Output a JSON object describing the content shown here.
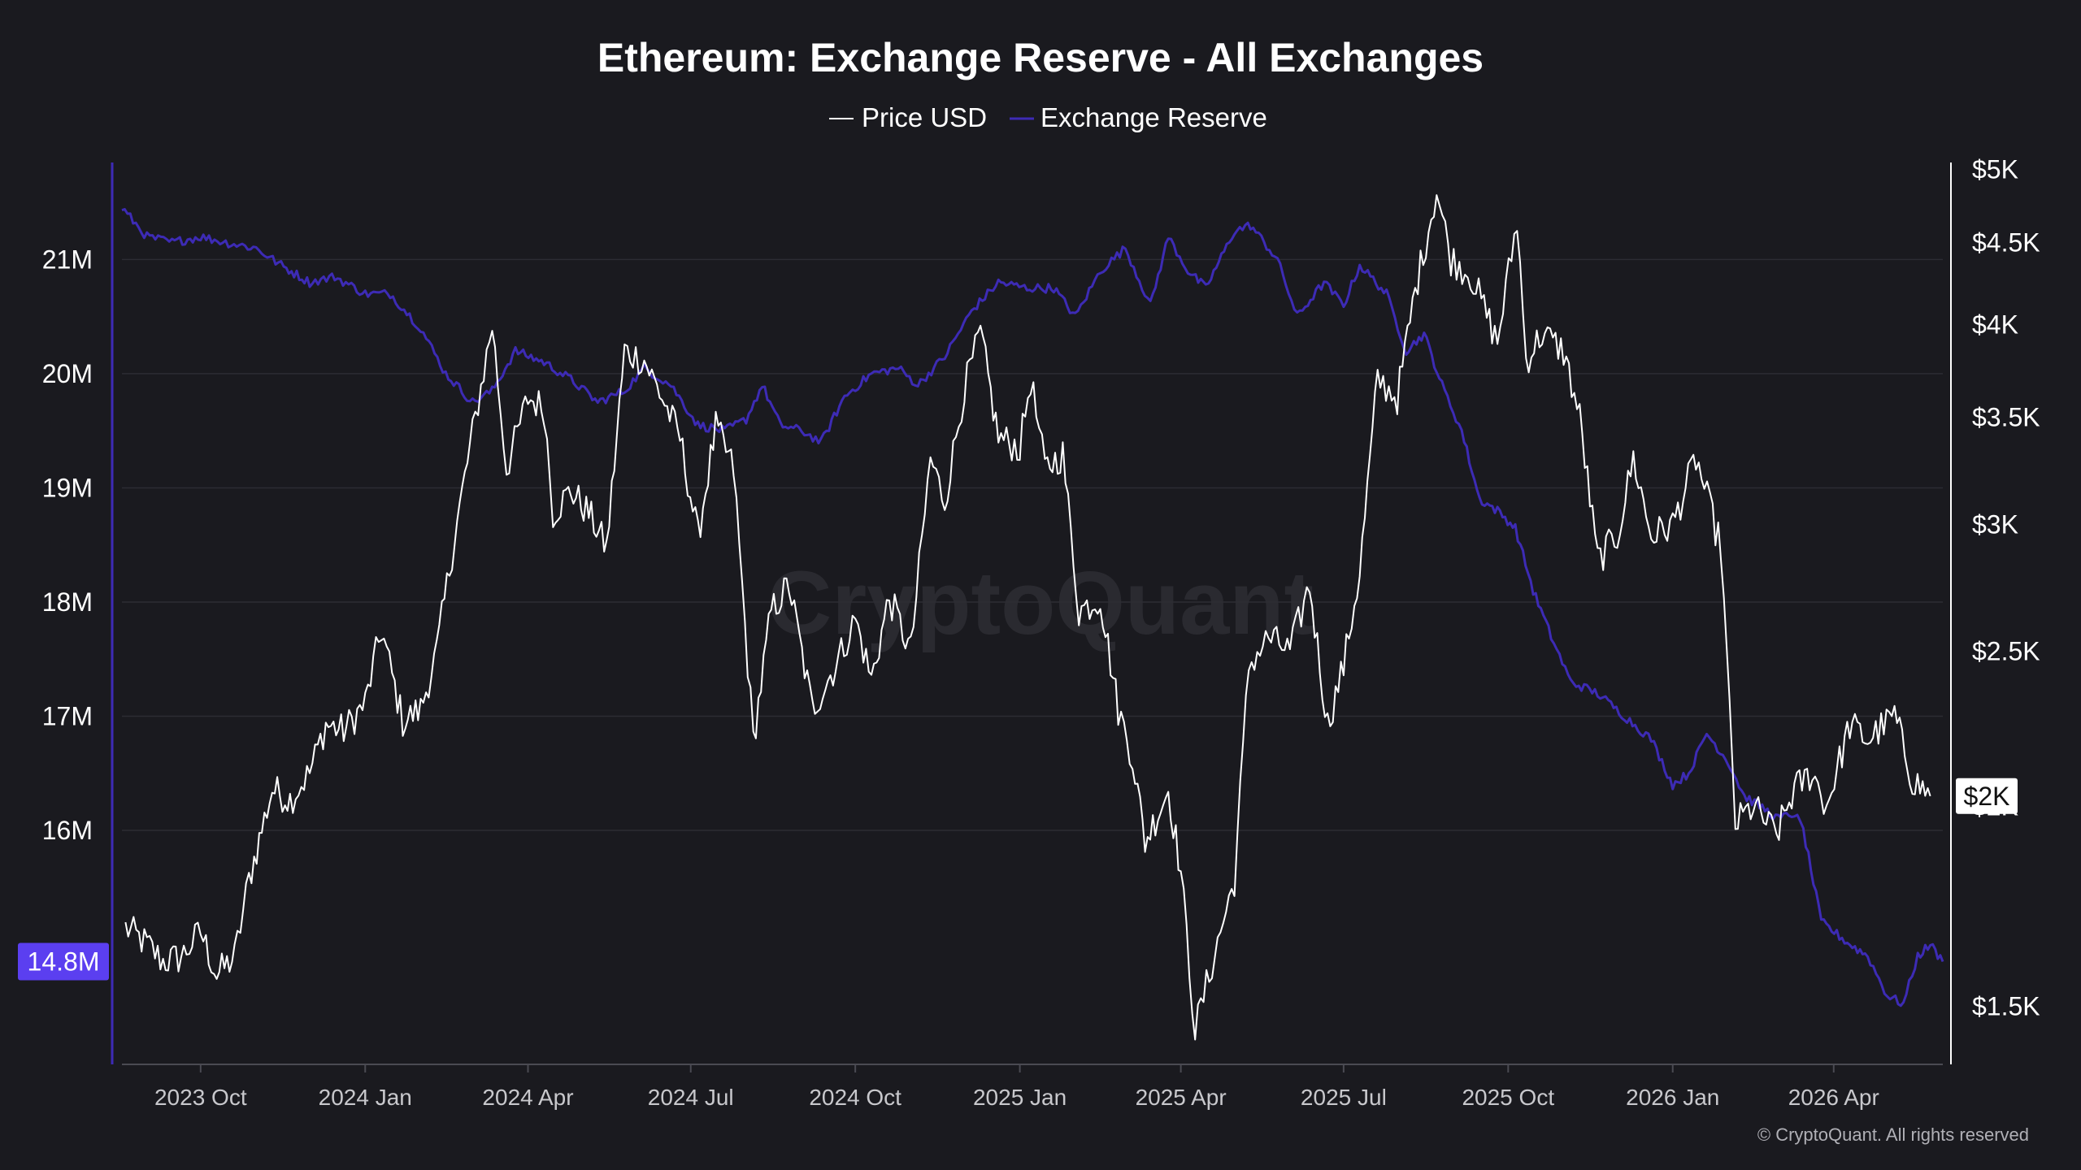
{
  "chart_data": {
    "type": "line",
    "title": "Ethereum: Exchange Reserve - All Exchanges",
    "legend": {
      "placement": "top-center"
    },
    "x_ticks": [
      "2023 Oct",
      "2024 Jan",
      "2024 Apr",
      "2024 Jul",
      "2024 Oct",
      "2025 Jan",
      "2025 Apr",
      "2025 Jul",
      "2025 Oct",
      "2026 Jan",
      "2026 Apr"
    ],
    "xlim": [
      "2023-08-18",
      "2026-06-01"
    ],
    "left_axis": {
      "ticks": [
        "21M",
        "20M",
        "19M",
        "18M",
        "17M",
        "16M"
      ],
      "tick_values": [
        21,
        20,
        19,
        18,
        17,
        16
      ],
      "range": [
        13.95,
        21.85
      ],
      "current_label": "14.8M",
      "color": "#3d2bb5",
      "badge_color": "#5b3ff0"
    },
    "right_axis": {
      "ticks": [
        "$5K",
        "$4.5K",
        "$4K",
        "$3.5K",
        "$3K",
        "$2.5K",
        "$2K",
        "$1.5K"
      ],
      "tick_values": [
        5000,
        4500,
        4000,
        3500,
        3000,
        2500,
        2000,
        1500
      ],
      "scale": "log",
      "range": [
        1380,
        5050
      ],
      "current_label": "$2K",
      "color": "#ffffff"
    },
    "grid": true,
    "series": [
      {
        "name": "Price USD",
        "axis": "right",
        "color": "#ffffff",
        "points": [
          [
            "2023-08-20",
            1680
          ],
          [
            "2023-09-01",
            1640
          ],
          [
            "2023-09-10",
            1600
          ],
          [
            "2023-09-20",
            1610
          ],
          [
            "2023-10-01",
            1670
          ],
          [
            "2023-10-10",
            1570
          ],
          [
            "2023-10-20",
            1610
          ],
          [
            "2023-10-28",
            1800
          ],
          [
            "2023-11-10",
            2050
          ],
          [
            "2023-11-20",
            2020
          ],
          [
            "2023-12-01",
            2100
          ],
          [
            "2023-12-10",
            2250
          ],
          [
            "2023-12-20",
            2230
          ],
          [
            "2024-01-01",
            2320
          ],
          [
            "2024-01-10",
            2580
          ],
          [
            "2024-01-22",
            2260
          ],
          [
            "2024-02-01",
            2300
          ],
          [
            "2024-02-10",
            2500
          ],
          [
            "2024-02-20",
            2950
          ],
          [
            "2024-03-01",
            3420
          ],
          [
            "2024-03-12",
            4000
          ],
          [
            "2024-03-20",
            3250
          ],
          [
            "2024-04-01",
            3600
          ],
          [
            "2024-04-10",
            3550
          ],
          [
            "2024-04-15",
            3050
          ],
          [
            "2024-04-25",
            3150
          ],
          [
            "2024-05-05",
            3050
          ],
          [
            "2024-05-15",
            2900
          ],
          [
            "2024-05-25",
            3850
          ],
          [
            "2024-06-05",
            3800
          ],
          [
            "2024-06-15",
            3600
          ],
          [
            "2024-06-25",
            3400
          ],
          [
            "2024-07-05",
            2950
          ],
          [
            "2024-07-15",
            3450
          ],
          [
            "2024-07-25",
            3250
          ],
          [
            "2024-08-05",
            2200
          ],
          [
            "2024-08-15",
            2650
          ],
          [
            "2024-08-25",
            2750
          ],
          [
            "2024-09-07",
            2300
          ],
          [
            "2024-09-20",
            2450
          ],
          [
            "2024-10-01",
            2620
          ],
          [
            "2024-10-10",
            2400
          ],
          [
            "2024-10-20",
            2700
          ],
          [
            "2024-11-01",
            2500
          ],
          [
            "2024-11-12",
            3300
          ],
          [
            "2024-11-20",
            3100
          ],
          [
            "2024-12-01",
            3650
          ],
          [
            "2024-12-10",
            3950
          ],
          [
            "2024-12-20",
            3400
          ],
          [
            "2025-01-01",
            3350
          ],
          [
            "2025-01-07",
            3700
          ],
          [
            "2025-01-15",
            3250
          ],
          [
            "2025-01-25",
            3320
          ],
          [
            "2025-02-03",
            2650
          ],
          [
            "2025-02-15",
            2700
          ],
          [
            "2025-02-25",
            2300
          ],
          [
            "2025-03-05",
            2150
          ],
          [
            "2025-03-12",
            1900
          ],
          [
            "2025-03-25",
            2050
          ],
          [
            "2025-04-01",
            1820
          ],
          [
            "2025-04-09",
            1450
          ],
          [
            "2025-04-20",
            1620
          ],
          [
            "2025-05-01",
            1800
          ],
          [
            "2025-05-09",
            2450
          ],
          [
            "2025-05-20",
            2550
          ],
          [
            "2025-06-01",
            2500
          ],
          [
            "2025-06-12",
            2750
          ],
          [
            "2025-06-22",
            2250
          ],
          [
            "2025-07-01",
            2450
          ],
          [
            "2025-07-10",
            2800
          ],
          [
            "2025-07-20",
            3700
          ],
          [
            "2025-07-31",
            3600
          ],
          [
            "2025-08-10",
            4200
          ],
          [
            "2025-08-22",
            4850
          ],
          [
            "2025-08-30",
            4400
          ],
          [
            "2025-09-10",
            4300
          ],
          [
            "2025-09-25",
            3900
          ],
          [
            "2025-10-06",
            4650
          ],
          [
            "2025-10-11",
            3800
          ],
          [
            "2025-10-20",
            3950
          ],
          [
            "2025-11-01",
            3850
          ],
          [
            "2025-11-10",
            3500
          ],
          [
            "2025-11-20",
            2850
          ],
          [
            "2025-12-01",
            2950
          ],
          [
            "2025-12-10",
            3300
          ],
          [
            "2025-12-20",
            2950
          ],
          [
            "2026-01-01",
            3000
          ],
          [
            "2026-01-14",
            3300
          ],
          [
            "2026-01-28",
            2900
          ],
          [
            "2026-02-05",
            1950
          ],
          [
            "2026-02-15",
            2000
          ],
          [
            "2026-02-28",
            1920
          ],
          [
            "2026-03-10",
            2050
          ],
          [
            "2026-03-20",
            2100
          ],
          [
            "2026-03-28",
            2000
          ],
          [
            "2026-04-10",
            2250
          ],
          [
            "2026-04-20",
            2200
          ],
          [
            "2026-05-05",
            2280
          ],
          [
            "2026-05-15",
            2080
          ],
          [
            "2026-05-25",
            2030
          ]
        ]
      },
      {
        "name": "Exchange Reserve",
        "axis": "left",
        "color": "#3d2bb5",
        "points": [
          [
            "2023-08-18",
            21.45
          ],
          [
            "2023-09-01",
            21.2
          ],
          [
            "2023-09-15",
            21.15
          ],
          [
            "2023-10-01",
            21.2
          ],
          [
            "2023-10-15",
            21.15
          ],
          [
            "2023-11-01",
            21.1
          ],
          [
            "2023-11-15",
            20.95
          ],
          [
            "2023-12-01",
            20.8
          ],
          [
            "2023-12-15",
            20.85
          ],
          [
            "2024-01-01",
            20.7
          ],
          [
            "2024-01-15",
            20.7
          ],
          [
            "2024-02-01",
            20.4
          ],
          [
            "2024-02-15",
            20.0
          ],
          [
            "2024-03-01",
            19.75
          ],
          [
            "2024-03-12",
            19.85
          ],
          [
            "2024-03-25",
            20.2
          ],
          [
            "2024-04-10",
            20.1
          ],
          [
            "2024-04-25",
            19.95
          ],
          [
            "2024-05-10",
            19.75
          ],
          [
            "2024-05-25",
            19.85
          ],
          [
            "2024-06-05",
            20.05
          ],
          [
            "2024-06-20",
            19.9
          ],
          [
            "2024-07-05",
            19.55
          ],
          [
            "2024-07-20",
            19.5
          ],
          [
            "2024-08-01",
            19.6
          ],
          [
            "2024-08-10",
            19.9
          ],
          [
            "2024-08-20",
            19.55
          ],
          [
            "2024-09-01",
            19.5
          ],
          [
            "2024-09-12",
            19.4
          ],
          [
            "2024-09-25",
            19.8
          ],
          [
            "2024-10-10",
            20.0
          ],
          [
            "2024-10-25",
            20.05
          ],
          [
            "2024-11-05",
            19.9
          ],
          [
            "2024-11-20",
            20.15
          ],
          [
            "2024-12-05",
            20.55
          ],
          [
            "2024-12-20",
            20.8
          ],
          [
            "2025-01-05",
            20.75
          ],
          [
            "2025-01-20",
            20.75
          ],
          [
            "2025-02-01",
            20.5
          ],
          [
            "2025-02-15",
            20.9
          ],
          [
            "2025-03-01",
            21.1
          ],
          [
            "2025-03-15",
            20.6
          ],
          [
            "2025-03-25",
            21.2
          ],
          [
            "2025-04-05",
            20.9
          ],
          [
            "2025-04-15",
            20.75
          ],
          [
            "2025-05-01",
            21.25
          ],
          [
            "2025-05-10",
            21.3
          ],
          [
            "2025-05-25",
            21.0
          ],
          [
            "2025-06-05",
            20.5
          ],
          [
            "2025-06-20",
            20.8
          ],
          [
            "2025-07-01",
            20.6
          ],
          [
            "2025-07-10",
            20.95
          ],
          [
            "2025-07-25",
            20.7
          ],
          [
            "2025-08-05",
            20.2
          ],
          [
            "2025-08-15",
            20.35
          ],
          [
            "2025-08-25",
            19.9
          ],
          [
            "2025-09-05",
            19.5
          ],
          [
            "2025-09-15",
            18.9
          ],
          [
            "2025-09-25",
            18.8
          ],
          [
            "2025-10-05",
            18.65
          ],
          [
            "2025-10-15",
            18.1
          ],
          [
            "2025-10-25",
            17.7
          ],
          [
            "2025-11-05",
            17.3
          ],
          [
            "2025-11-20",
            17.2
          ],
          [
            "2025-12-05",
            17.0
          ],
          [
            "2025-12-20",
            16.8
          ],
          [
            "2026-01-01",
            16.4
          ],
          [
            "2026-01-10",
            16.5
          ],
          [
            "2026-01-20",
            16.85
          ],
          [
            "2026-02-01",
            16.6
          ],
          [
            "2026-02-10",
            16.3
          ],
          [
            "2026-02-20",
            16.2
          ],
          [
            "2026-03-01",
            16.1
          ],
          [
            "2026-03-10",
            16.15
          ],
          [
            "2026-03-15",
            16.0
          ],
          [
            "2026-03-25",
            15.2
          ],
          [
            "2026-04-10",
            15.0
          ],
          [
            "2026-04-20",
            14.9
          ],
          [
            "2026-05-01",
            14.55
          ],
          [
            "2026-05-10",
            14.48
          ],
          [
            "2026-05-18",
            14.9
          ],
          [
            "2026-05-25",
            15.0
          ],
          [
            "2026-06-01",
            14.85
          ]
        ]
      }
    ]
  },
  "watermark": "CryptoQuant",
  "copyright": "© CryptoQuant. All rights reserved"
}
